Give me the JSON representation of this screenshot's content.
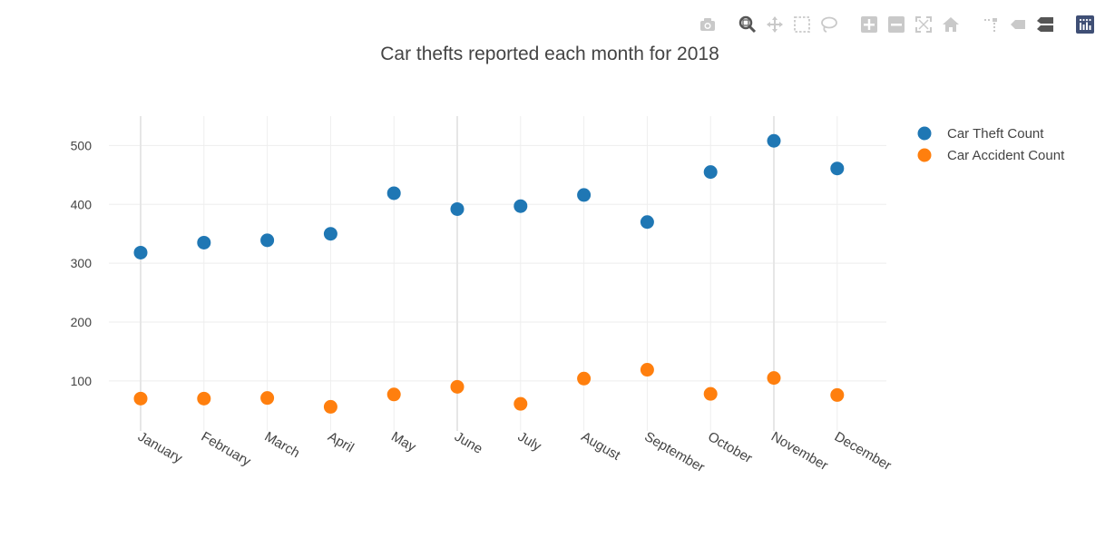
{
  "modebar": {
    "buttons": [
      {
        "name": "camera-icon",
        "group": 0,
        "active": false
      },
      {
        "name": "zoom-icon",
        "group": 1,
        "active": true
      },
      {
        "name": "pan-icon",
        "group": 1,
        "active": false
      },
      {
        "name": "box-select-icon",
        "group": 1,
        "active": false
      },
      {
        "name": "lasso-select-icon",
        "group": 1,
        "active": false
      },
      {
        "name": "zoom-in-icon",
        "group": 2,
        "active": false
      },
      {
        "name": "zoom-out-icon",
        "group": 2,
        "active": false
      },
      {
        "name": "autoscale-icon",
        "group": 2,
        "active": false
      },
      {
        "name": "reset-axes-icon",
        "group": 2,
        "active": false
      },
      {
        "name": "spike-lines-icon",
        "group": 3,
        "active": false
      },
      {
        "name": "hover-closest-icon",
        "group": 3,
        "active": false
      },
      {
        "name": "hover-compare-icon",
        "group": 3,
        "active": true
      },
      {
        "name": "plotly-logo-icon",
        "group": 4,
        "active": false
      }
    ],
    "colors": {
      "inactive": "#c9c9c9",
      "active": "#555555",
      "logo": "#3f4f75"
    }
  },
  "chart_data": {
    "type": "scatter",
    "title": "Car thefts reported each month for 2018",
    "categories": [
      "January",
      "February",
      "March",
      "April",
      "May",
      "June",
      "July",
      "August",
      "September",
      "October",
      "November",
      "December"
    ],
    "series": [
      {
        "name": "Car Theft Count",
        "color": "#1f77b4",
        "values": [
          318,
          335,
          339,
          350,
          419,
          392,
          397,
          416,
          370,
          455,
          508,
          461
        ]
      },
      {
        "name": "Car Accident Count",
        "color": "#ff7f0e",
        "values": [
          70,
          70,
          71,
          56,
          77,
          90,
          61,
          104,
          119,
          78,
          105,
          76
        ]
      }
    ],
    "yticks": [
      100,
      200,
      300,
      400,
      500
    ],
    "ylim": [
      15,
      550
    ],
    "grid": true,
    "legend": "top-right"
  }
}
